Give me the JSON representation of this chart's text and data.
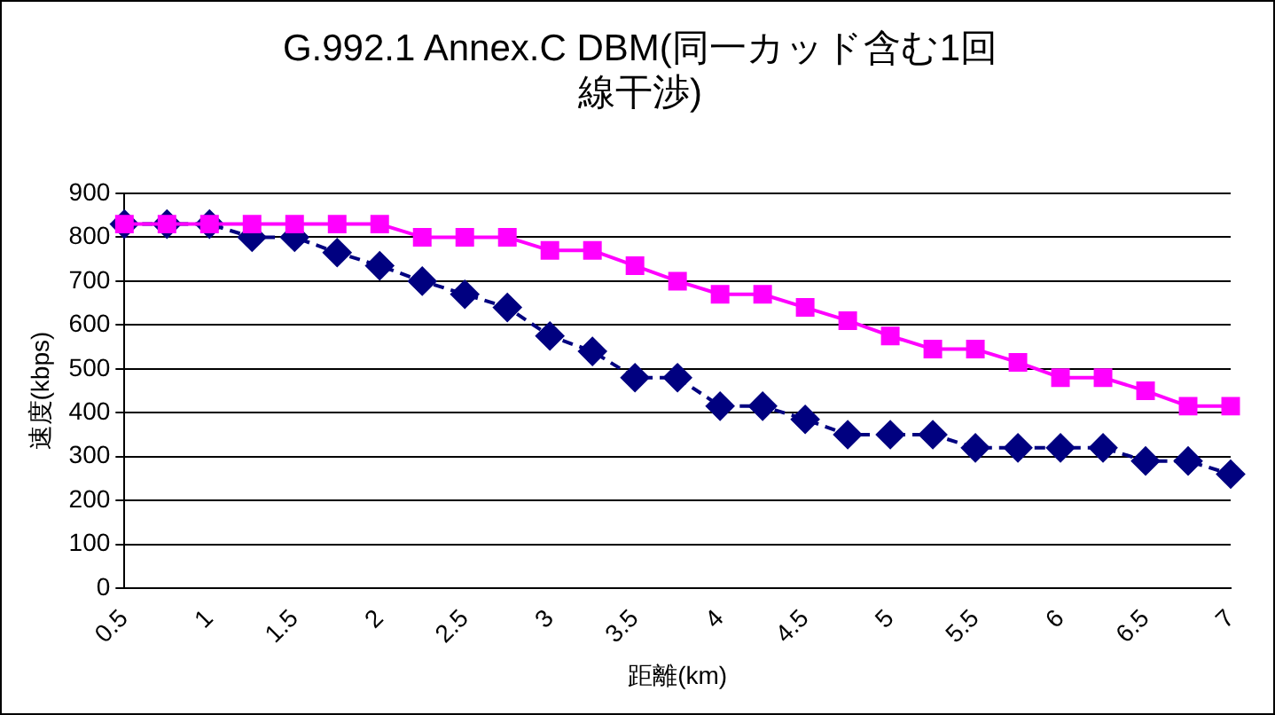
{
  "chart_data": {
    "type": "line",
    "title": "G.992.1 Annex.C DBM(同一カッド含む1回線干渉)",
    "xlabel": "距離(km)",
    "ylabel": "速度(kbps)",
    "categories": [
      "0.5",
      null,
      "1",
      null,
      "1.5",
      null,
      "2",
      null,
      "2.5",
      null,
      "3",
      null,
      "3.5",
      null,
      "4",
      null,
      "4.5",
      null,
      "5",
      null,
      "5.5",
      null,
      "6",
      null,
      "6.5",
      null,
      "7"
    ],
    "series": [
      {
        "color": "#ff00ff",
        "marker": "square",
        "line_style": "solid",
        "values": [
          830,
          830,
          830,
          830,
          830,
          830,
          830,
          800,
          800,
          800,
          770,
          770,
          735,
          700,
          670,
          670,
          640,
          610,
          575,
          545,
          545,
          515,
          480,
          480,
          450,
          415,
          415
        ]
      },
      {
        "color": "#000080",
        "marker": "diamond",
        "line_style": "dashed",
        "values": [
          830,
          830,
          830,
          800,
          800,
          765,
          735,
          700,
          670,
          640,
          575,
          540,
          480,
          480,
          415,
          415,
          385,
          350,
          350,
          350,
          320,
          320,
          320,
          320,
          290,
          290,
          260
        ]
      }
    ],
    "ylim": [
      0,
      900
    ],
    "yticks": [
      0,
      100,
      200,
      300,
      400,
      500,
      600,
      700,
      800,
      900
    ],
    "grid": "y",
    "legend": false
  }
}
